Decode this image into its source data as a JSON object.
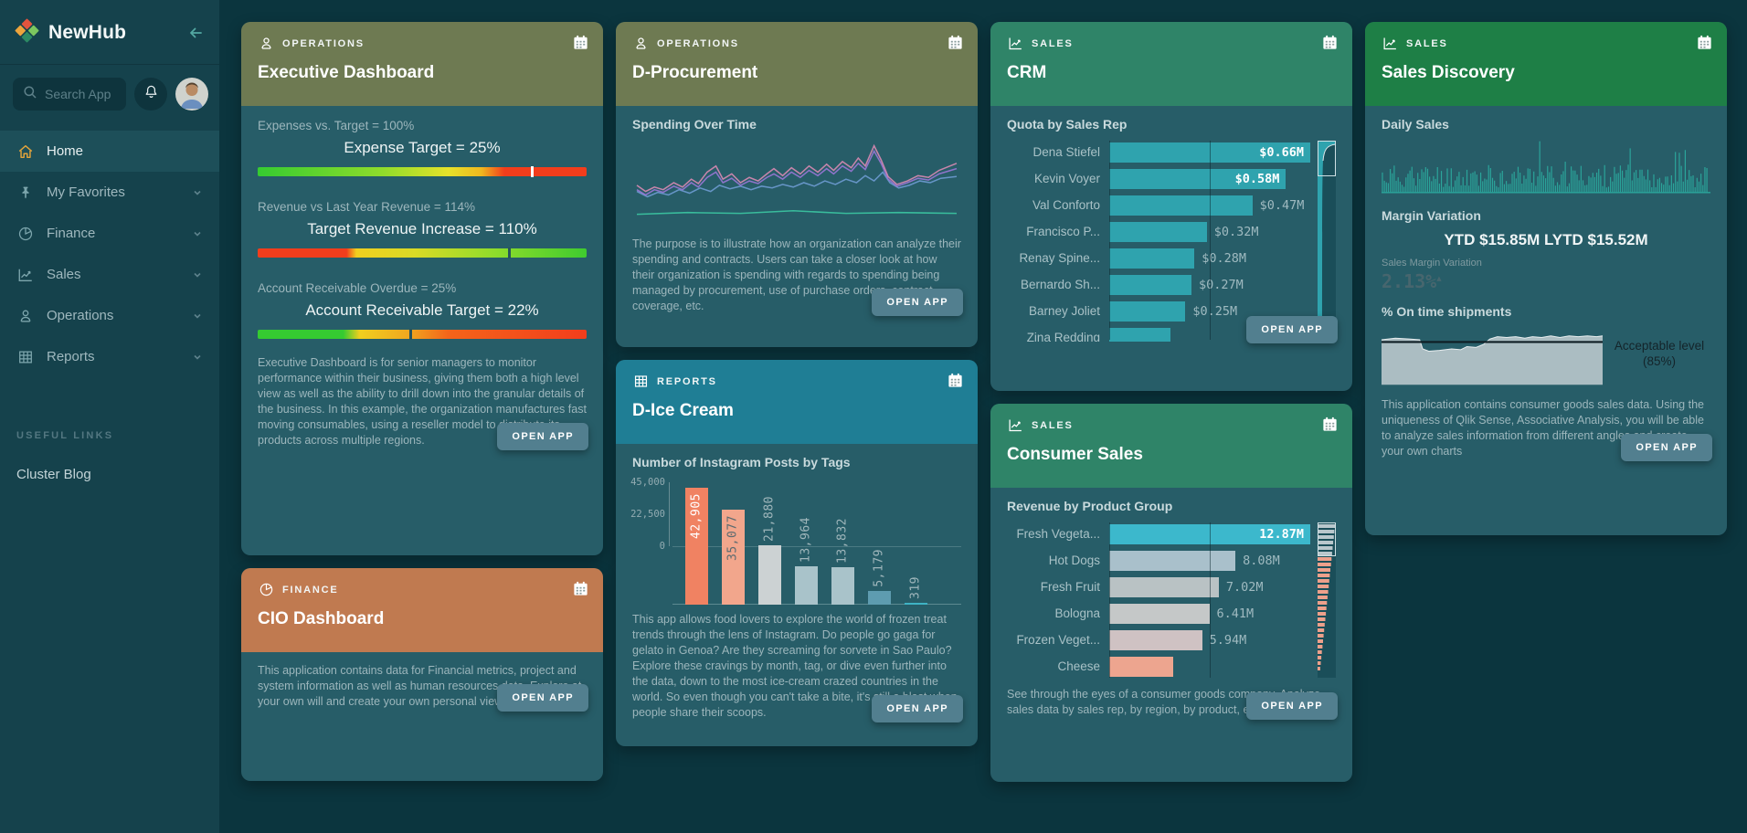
{
  "app": {
    "name": "NewHub"
  },
  "sidebar": {
    "search_placeholder": "Search App",
    "nav": [
      {
        "label": "Home",
        "icon": "home-icon",
        "active": true,
        "expandable": false
      },
      {
        "label": "My Favorites",
        "icon": "pin-icon",
        "active": false,
        "expandable": true
      },
      {
        "label": "Finance",
        "icon": "pie-chart-icon",
        "active": false,
        "expandable": true
      },
      {
        "label": "Sales",
        "icon": "line-chart-icon",
        "active": false,
        "expandable": true
      },
      {
        "label": "Operations",
        "icon": "person-icon",
        "active": false,
        "expandable": true
      },
      {
        "label": "Reports",
        "icon": "table-icon",
        "active": false,
        "expandable": true
      }
    ],
    "useful_links_header": "USEFUL LINKS",
    "useful_links": [
      {
        "label": "Cluster Blog"
      }
    ]
  },
  "common": {
    "open_app": "OPEN APP"
  },
  "colors": {
    "operations_header": "#6e7a52",
    "finance_header": "#c07a50",
    "sales_header": "#2f8468",
    "sales_discovery_header": "#1e7f46",
    "reports_header": "#1f7e95",
    "accent_teal": "#2fa3ae",
    "open_app_button": "#527f8f"
  },
  "cards": {
    "executive": {
      "category": "OPERATIONS",
      "title": "Executive Dashboard",
      "description": "Executive Dashboard is for senior managers to monitor performance within their business, giving them both a high level view as well as the ability to drill down into the granular details of the business. In this example, the organization manufactures fast moving consumables, using a reseller model to distribute its products across multiple regions.",
      "chart_data": {
        "type": "bar",
        "subtype": "bullet-gauges",
        "gauges": [
          {
            "heading": "Expenses vs. Target = 100%",
            "target_label": "Expense Target = 25%",
            "marker_pct": 83,
            "marker_color": "#ffffff",
            "gradient": "grad-gyr"
          },
          {
            "heading": "Revenue vs Last Year Revenue = 114%",
            "target_label": "Target Revenue Increase = 110%",
            "marker_pct": 76,
            "marker_color": "#28535c",
            "gradient": "grad-ryg"
          },
          {
            "heading": "Account Receivable Overdue = 25%",
            "target_label": "Account Receivable Target = 22%",
            "marker_pct": 46,
            "marker_color": "#28535c",
            "gradient": "grad-gyo"
          }
        ]
      }
    },
    "cio": {
      "category": "FINANCE",
      "title": "CIO Dashboard",
      "description": "This application contains data for Financial metrics, project and system information as well as human resources data. Explore at your own will and create your own personal view!"
    },
    "procurement": {
      "category": "OPERATIONS",
      "title": "D-Procurement",
      "chart_title": "Spending Over Time",
      "description": "The purpose is to illustrate how an organization can analyze their spending and contracts. Users can take a closer look at how their organization is spending with regards to spending being managed by procurement, use of purchase orders, contract coverage, etc.",
      "chart_data": {
        "type": "line",
        "title": "Spending Over Time",
        "series_count": 4,
        "series_colors": [
          "#d989b2",
          "#9a77d6",
          "#6e9bd2",
          "#3cc6a2"
        ],
        "axes_shown": false
      }
    },
    "icecream": {
      "category": "REPORTS",
      "title": "D-Ice Cream",
      "chart_title": "Number of Instagram Posts by Tags",
      "description": "This app allows food lovers to explore the world of frozen treat trends through the lens of Instagram. Do people go gaga for gelato in Genoa? Are they screaming for sorvete in Sao Paulo? Explore these cravings by month, tag, or dive even further into the data, down to the most ice-cream crazed countries in the world. So even though you can't take a bite, it's still a blast when people share their scoops.",
      "chart_data": {
        "type": "bar",
        "title": "Number of Instagram Posts by Tags",
        "values": [
          42905,
          35077,
          21880,
          13964,
          13832,
          5179,
          319
        ],
        "labels": [
          "42,905",
          "35,077",
          "21,880",
          "13,964",
          "13,832",
          "5,179",
          "319"
        ],
        "colors": [
          "#f08262",
          "#f2a68c",
          "#ccd2d3",
          "#a9c3ca",
          "#a9c3ca",
          "#5e9cb0",
          "#3fb3c4"
        ],
        "label_colors": [
          "#ffffff",
          "#5c6b70",
          "#9fb6bb",
          "#9fb6bb",
          "#9fb6bb",
          "#9fb6bb",
          "#9fb6bb"
        ],
        "inside": [
          true,
          true,
          false,
          false,
          false,
          false,
          false
        ],
        "y_ticks": [
          "45,000",
          "22,500",
          "0"
        ],
        "ymax": 45000
      }
    },
    "crm": {
      "category": "SALES",
      "title": "CRM",
      "chart_title": "Quota by Sales Rep",
      "chart_data": {
        "type": "bar",
        "title": "Quota by Sales Rep",
        "categories": [
          "Dena Stiefel",
          "Kevin Voyer",
          "Val Conforto",
          "Francisco P...",
          "Renay Spine...",
          "Bernardo Sh...",
          "Barney Joliet",
          "Zina Redding"
        ],
        "values": [
          0.66,
          0.58,
          0.47,
          0.32,
          0.28,
          0.27,
          0.25,
          0.2
        ],
        "value_labels": [
          "$0.66M",
          "$0.58M",
          "$0.47M",
          "$0.32M",
          "$0.28M",
          "$0.27M",
          "$0.25M",
          ""
        ],
        "bar_color": "#2fa3ae",
        "inside_count": 2,
        "xmax": 0.66
      }
    },
    "consumer": {
      "category": "SALES",
      "title": "Consumer Sales",
      "chart_title": "Revenue by Product Group",
      "description": "See through the eyes of a consumer goods company. Analyze sales data by sales rep, by region, by product, etc.",
      "chart_data": {
        "type": "bar",
        "title": "Revenue by Product Group",
        "categories": [
          "Fresh Vegeta...",
          "Hot Dogs",
          "Fresh Fruit",
          "Bologna",
          "Frozen Veget...",
          "Cheese"
        ],
        "values": [
          12.87,
          8.08,
          7.02,
          6.41,
          5.94,
          4.1
        ],
        "value_labels": [
          "12.87M",
          "8.08M",
          "7.02M",
          "6.41M",
          "5.94M",
          ""
        ],
        "colors": [
          "#3cb8cc",
          "#a9c0cb",
          "#b9c2c4",
          "#c5c8c8",
          "#cfc2c3",
          "#eda58f"
        ],
        "inside_count": 1,
        "xmax": 12.87
      }
    },
    "discovery": {
      "category": "SALES",
      "title": "Sales Discovery",
      "daily_sales_label": "Daily Sales",
      "margin_variation_label": "Margin Variation",
      "ytd_line": "YTD $15.85M LYTD $15.52M",
      "sales_margin_variation_label": "Sales Margin Variation",
      "sales_margin_variation_value": "2.13%",
      "shipments_label": "% On time shipments",
      "acceptable_level_label": "Acceptable level (85%)",
      "description": "This application contains consumer goods sales data. Using the uniqueness of Qlik Sense, Associative Analysis, you will be able to analyze sales information from different angles and create your own charts",
      "chart_data": [
        {
          "type": "line",
          "title": "Daily Sales",
          "style": "dense-spike-sparkline",
          "color": "#2ba59b"
        },
        {
          "type": "area",
          "title": "% On time shipments",
          "reference_line_value": 85,
          "reference_line_label": "Acceptable level (85%)",
          "area_color": "#b6c5ca"
        }
      ]
    }
  }
}
